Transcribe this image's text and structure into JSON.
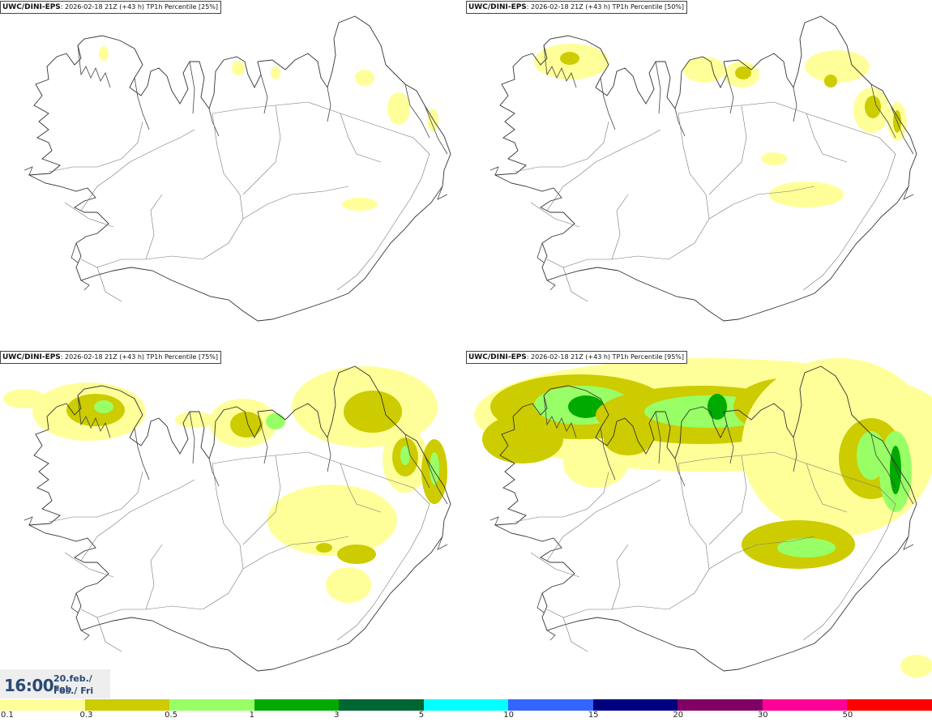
{
  "panels": [
    {
      "model": "UWC/DINI-EPS",
      "run": ": 2026-02-18 21Z (+43 h) TP1h Percentile [25%]",
      "level": 0
    },
    {
      "model": "UWC/DINI-EPS",
      "run": ": 2026-02-18 21Z (+43 h) TP1h Percentile [50%]",
      "level": 1
    },
    {
      "model": "UWC/DINI-EPS",
      "run": ": 2026-02-18 21Z (+43 h) TP1h Percentile [75%]",
      "level": 2
    },
    {
      "model": "UWC/DINI-EPS",
      "run": ": 2026-02-18 21Z (+43 h) TP1h Percentile [95%]",
      "level": 3
    }
  ],
  "valid_time": {
    "time": "16:00",
    "date": "20.feb./ Feb",
    "day": "Fös./ Fri"
  },
  "legend": {
    "colors": [
      "#ffff99",
      "#cccc00",
      "#99ff66",
      "#00aa00",
      "#006633",
      "#00ffff",
      "#3366ff",
      "#000080",
      "#800066",
      "#ff0099",
      "#ff0000"
    ],
    "labels": [
      "0.1",
      "0.3",
      "0.5",
      "1",
      "3",
      "5",
      "10",
      "15",
      "20",
      "30",
      "50"
    ]
  }
}
